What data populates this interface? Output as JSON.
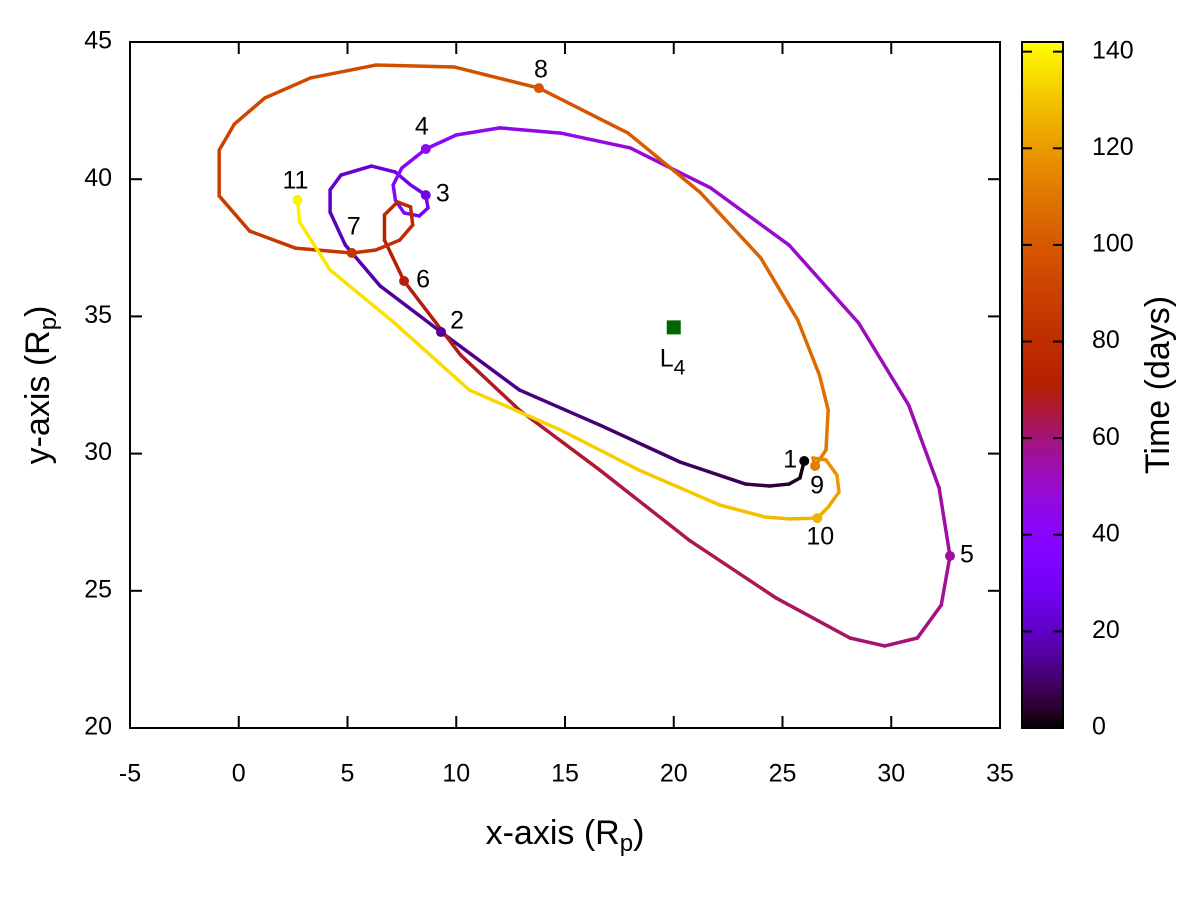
{
  "chart_data": {
    "type": "trajectory",
    "x_label": {
      "text": "x-axis (R",
      "sub": "p",
      "tail": ")"
    },
    "y_label": {
      "text": "y-axis (R",
      "sub": "p",
      "tail": ")"
    },
    "xlim": [
      -5,
      35
    ],
    "xticks": [
      -5,
      0,
      5,
      10,
      15,
      20,
      25,
      30,
      35
    ],
    "ylim": [
      20,
      45
    ],
    "yticks": [
      20,
      25,
      30,
      35,
      40,
      45
    ],
    "colorbar": {
      "label": "Time (days)",
      "clim": [
        0,
        142
      ],
      "cticks": [
        0,
        20,
        40,
        60,
        80,
        100,
        120,
        140
      ],
      "colormap": "rgbformulae 7,5,15"
    },
    "points": [
      {
        "label": "1",
        "x": 26.0,
        "y": 29.73,
        "t": 0
      },
      {
        "label": "2",
        "x": 9.3,
        "y": 34.43,
        "t": 14
      },
      {
        "label": "3",
        "x": 8.6,
        "y": 39.42,
        "t": 28
      },
      {
        "label": "4",
        "x": 8.6,
        "y": 41.1,
        "t": 42
      },
      {
        "label": "5",
        "x": 32.7,
        "y": 26.27,
        "t": 56
      },
      {
        "label": "6",
        "x": 7.6,
        "y": 36.29,
        "t": 70
      },
      {
        "label": "7",
        "x": 5.2,
        "y": 37.31,
        "t": 84
      },
      {
        "label": "8",
        "x": 13.8,
        "y": 43.32,
        "t": 98
      },
      {
        "label": "9",
        "x": 26.5,
        "y": 29.55,
        "t": 112
      },
      {
        "label": "10",
        "x": 26.6,
        "y": 27.65,
        "t": 126
      },
      {
        "label": "11",
        "x": 2.7,
        "y": 39.24,
        "t": 140
      }
    ],
    "trajectory": [
      {
        "x": [
          25.8,
          25.3,
          24.4,
          23.3,
          20.3,
          16.6,
          12.9
        ],
        "y": [
          29.11,
          28.89,
          28.82,
          28.89,
          29.69,
          31.04,
          32.32
        ]
      },
      {
        "x": [
          6.5,
          4.9,
          4.2,
          4.2,
          4.7,
          6.1,
          7.2,
          7.9
        ],
        "y": [
          36.11,
          37.6,
          38.8,
          39.61,
          40.15,
          40.48,
          40.26,
          39.79
        ]
      },
      {
        "x": [
          8.7,
          8.3,
          7.6,
          7.2,
          7.1,
          7.5
        ],
        "y": [
          38.95,
          38.66,
          38.77,
          39.24,
          39.79,
          40.41
        ]
      },
      {
        "x": [
          10.0,
          12.0,
          14.8,
          18.0,
          21.7,
          25.3,
          28.5,
          30.8,
          32.2
        ],
        "y": [
          41.61,
          41.87,
          41.68,
          41.14,
          39.68,
          37.6,
          34.76,
          31.77,
          28.75
        ]
      },
      {
        "x": [
          32.3,
          31.2,
          29.7,
          28.1,
          24.7,
          20.7,
          16.6,
          12.9,
          10.2
        ],
        "y": [
          24.48,
          23.28,
          22.99,
          23.28,
          24.74,
          26.85,
          29.4,
          31.59,
          33.59
        ]
      },
      {
        "x": [
          6.7,
          6.7,
          7.3,
          7.9,
          8.0,
          7.4,
          6.3
        ],
        "y": [
          37.78,
          38.7,
          39.17,
          38.99,
          38.33,
          37.78,
          37.42
        ]
      },
      {
        "x": [
          2.6,
          0.5,
          -0.9,
          -0.9,
          -0.2,
          1.2,
          3.3,
          6.3,
          9.9
        ],
        "y": [
          37.49,
          38.11,
          39.39,
          41.06,
          42.01,
          42.96,
          43.69,
          44.16,
          44.09
        ]
      },
      {
        "x": [
          17.9,
          21.2,
          24.0,
          25.7,
          26.7,
          27.1,
          27.0
        ],
        "y": [
          41.68,
          39.53,
          37.13,
          34.87,
          32.86,
          31.59,
          30.13
        ]
      },
      {
        "x": [
          26.4,
          27.0,
          27.5,
          27.6,
          27.1
        ],
        "y": [
          29.84,
          29.77,
          29.22,
          28.6,
          28.05
        ]
      },
      {
        "x": [
          25.3,
          24.2,
          22.1,
          18.4,
          14.8,
          10.6,
          7.0,
          4.2,
          2.8
        ],
        "y": [
          27.62,
          27.69,
          28.13,
          29.4,
          30.86,
          32.32,
          34.87,
          36.69,
          38.44
        ]
      }
    ],
    "marker": {
      "label": "L",
      "subscript": "4",
      "x": 20,
      "y": 34.6,
      "color": "#006400"
    }
  }
}
